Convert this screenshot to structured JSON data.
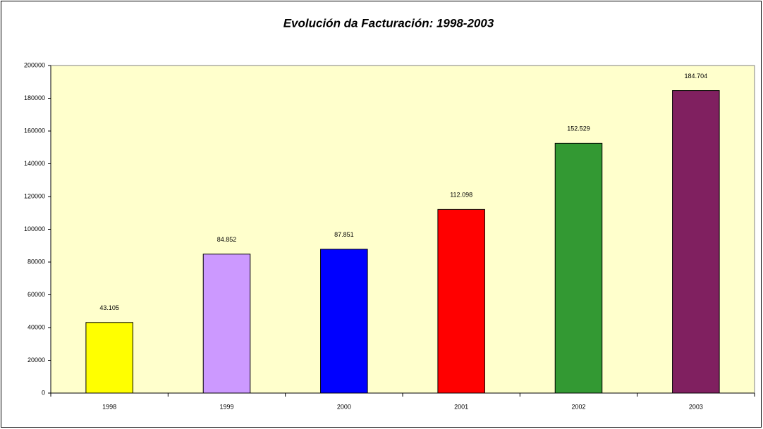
{
  "chart_data": {
    "type": "bar",
    "title": "Evolución da Facturación: 1998-2003",
    "categories": [
      "1998",
      "1999",
      "2000",
      "2001",
      "2002",
      "2003"
    ],
    "values": [
      43105,
      84852,
      87851,
      112098,
      152529,
      184704
    ],
    "value_labels": [
      "43.105",
      "84.852",
      "87.851",
      "112.098",
      "152.529",
      "184.704"
    ],
    "colors": [
      "#ffff00",
      "#cc99ff",
      "#0000ff",
      "#ff0000",
      "#339933",
      "#802060"
    ],
    "plot_background": "#ffffcc",
    "ylim": [
      0,
      200000
    ],
    "yticks": [
      0,
      20000,
      40000,
      60000,
      80000,
      100000,
      120000,
      140000,
      160000,
      180000,
      200000
    ],
    "grid": false
  }
}
